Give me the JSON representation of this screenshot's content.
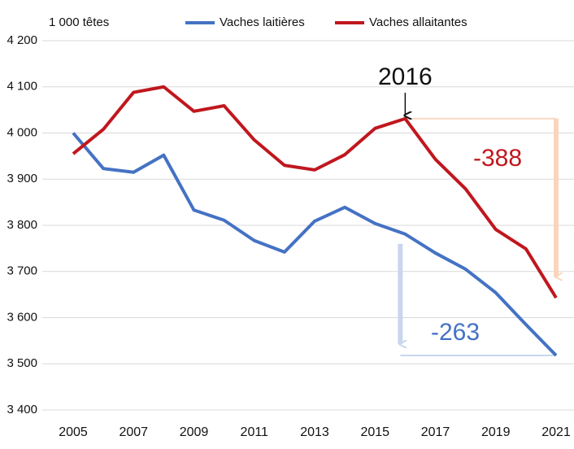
{
  "chart_data": {
    "type": "line",
    "unit_label": "1 000 têtes",
    "x": [
      2005,
      2006,
      2007,
      2008,
      2009,
      2010,
      2011,
      2012,
      2013,
      2014,
      2015,
      2016,
      2017,
      2018,
      2019,
      2020,
      2021
    ],
    "series": [
      {
        "name": "Vaches laitières",
        "color": "#4472c4",
        "values": [
          4000,
          3923,
          3915,
          3952,
          3833,
          3811,
          3767,
          3742,
          3809,
          3839,
          3804,
          3781,
          3740,
          3705,
          3654,
          3585,
          3518
        ]
      },
      {
        "name": "Vaches allaitantes",
        "color": "#c0171e",
        "values": [
          3955,
          4008,
          4088,
          4100,
          4047,
          4059,
          3985,
          3930,
          3920,
          3953,
          4010,
          4031,
          3943,
          3879,
          3791,
          3749,
          3643
        ]
      }
    ],
    "xlim": [
      2005,
      2021
    ],
    "xticks": [
      2005,
      2007,
      2009,
      2011,
      2013,
      2015,
      2017,
      2019,
      2021
    ],
    "ylim": [
      3400,
      4200
    ],
    "yticks": [
      {
        "value": 3400,
        "label": "3 400"
      },
      {
        "value": 3500,
        "label": "3 500"
      },
      {
        "value": 3600,
        "label": "3 600"
      },
      {
        "value": 3700,
        "label": "3 700"
      },
      {
        "value": 3800,
        "label": "3 800"
      },
      {
        "value": 3900,
        "label": "3 900"
      },
      {
        "value": 4000,
        "label": "4 000"
      },
      {
        "value": 4100,
        "label": "4 100"
      },
      {
        "value": 4200,
        "label": "4 200"
      }
    ],
    "grid": true,
    "annotations": [
      {
        "text": "2016",
        "x": 2016
      },
      {
        "text": "-388",
        "series": 1
      },
      {
        "text": "-263",
        "series": 0
      }
    ]
  }
}
